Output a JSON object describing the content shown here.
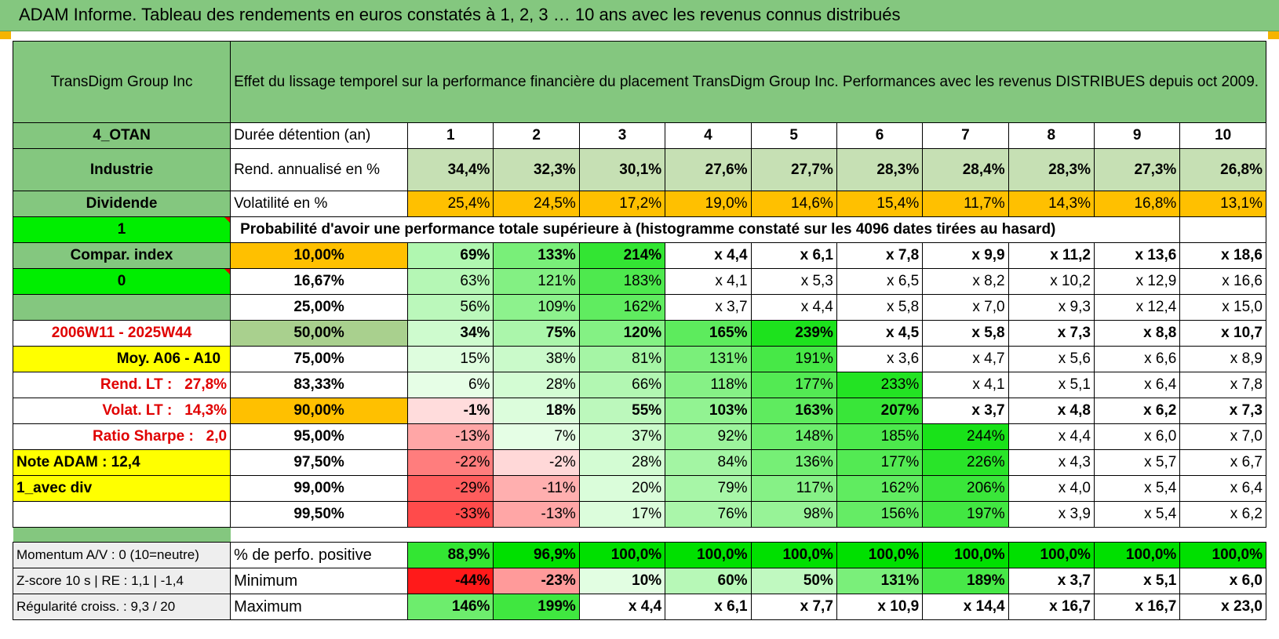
{
  "header": {
    "title": "ADAM Informe. Tableau des rendements en euros constatés à 1, 2, 3 … 10 ans avec les revenus connus distribués"
  },
  "company": "TransDigm Group Inc",
  "subtitle": "Effet du lissage temporel sur la performance financière du placement TransDigm Group Inc. Performances avec les revenus DISTRIBUES depuis oct 2009.",
  "left_labels": {
    "group": "4_OTAN",
    "sector": "Industrie",
    "dividend": "Dividende",
    "one": "1",
    "compar": "Compar. index",
    "zero": "0",
    "period": "2006W11 - 2025W44",
    "moy": "Moy. A06 - A10",
    "rend_lt_label": "Rend. LT :",
    "rend_lt_value": "27,8%",
    "volat_lt_label": "Volat. LT :",
    "volat_lt_value": "14,3%",
    "sharpe_label": "Ratio Sharpe :",
    "sharpe_value": "2,0",
    "note": "Note ADAM : 12,4",
    "avec_div": "1_avec div",
    "momentum": "Momentum A/V : 0 (10=neutre)",
    "zscore": "Z-score 10 s | RE : 1,1 | -1,4",
    "regularite": "Régularité croiss. : 9,3 / 20"
  },
  "row_labels": {
    "duree": "Durée détention (an)",
    "rend": "Rend. annualisé en %",
    "vol": "Volatilité en %",
    "proba": "Probabilité d'avoir une performance totale supérieure à (histogramme constaté sur les 4096 dates tirées au hasard)",
    "pos": "% de perfo. positive",
    "min": "Minimum",
    "max": "Maximum"
  },
  "years": [
    "1",
    "2",
    "3",
    "4",
    "5",
    "6",
    "7",
    "8",
    "9",
    "10"
  ],
  "rend": [
    "34,4%",
    "32,3%",
    "30,1%",
    "27,6%",
    "27,7%",
    "28,3%",
    "28,4%",
    "28,3%",
    "27,3%",
    "26,8%"
  ],
  "vol": [
    "25,4%",
    "24,5%",
    "17,2%",
    "19,0%",
    "14,6%",
    "15,4%",
    "11,7%",
    "14,3%",
    "16,8%",
    "13,1%"
  ],
  "proba_rows": [
    {
      "pct": "10,00%",
      "vals": [
        "69%",
        "133%",
        "214%",
        "x 4,4",
        "x 6,1",
        "x 7,8",
        "x 9,9",
        "x 11,2",
        "x 13,6",
        "x 18,6"
      ]
    },
    {
      "pct": "16,67%",
      "vals": [
        "63%",
        "121%",
        "183%",
        "x 4,1",
        "x 5,3",
        "x 6,5",
        "x 8,2",
        "x 10,2",
        "x 12,9",
        "x 16,6"
      ]
    },
    {
      "pct": "25,00%",
      "vals": [
        "56%",
        "109%",
        "162%",
        "x 3,7",
        "x 4,4",
        "x 5,8",
        "x 7,0",
        "x 9,3",
        "x 12,4",
        "x 15,0"
      ]
    },
    {
      "pct": "50,00%",
      "vals": [
        "34%",
        "75%",
        "120%",
        "165%",
        "239%",
        "x 4,5",
        "x 5,8",
        "x 7,3",
        "x 8,8",
        "x 10,7"
      ]
    },
    {
      "pct": "75,00%",
      "vals": [
        "15%",
        "38%",
        "81%",
        "131%",
        "191%",
        "x 3,6",
        "x 4,7",
        "x 5,6",
        "x 6,6",
        "x 8,9"
      ]
    },
    {
      "pct": "83,33%",
      "vals": [
        "6%",
        "28%",
        "66%",
        "118%",
        "177%",
        "233%",
        "x 4,1",
        "x 5,1",
        "x 6,4",
        "x 7,8"
      ]
    },
    {
      "pct": "90,00%",
      "vals": [
        "-1%",
        "18%",
        "55%",
        "103%",
        "163%",
        "207%",
        "x 3,7",
        "x 4,8",
        "x 6,2",
        "x 7,3"
      ]
    },
    {
      "pct": "95,00%",
      "vals": [
        "-13%",
        "7%",
        "37%",
        "92%",
        "148%",
        "185%",
        "244%",
        "x 4,4",
        "x 6,0",
        "x 7,0"
      ]
    },
    {
      "pct": "97,50%",
      "vals": [
        "-22%",
        "-2%",
        "28%",
        "84%",
        "136%",
        "177%",
        "226%",
        "x 4,3",
        "x 5,7",
        "x 6,7"
      ]
    },
    {
      "pct": "99,00%",
      "vals": [
        "-29%",
        "-11%",
        "20%",
        "79%",
        "117%",
        "162%",
        "206%",
        "x 4,0",
        "x 5,4",
        "x 6,4"
      ]
    },
    {
      "pct": "99,50%",
      "vals": [
        "-33%",
        "-13%",
        "17%",
        "76%",
        "98%",
        "156%",
        "197%",
        "x 3,9",
        "x 5,4",
        "x 6,2"
      ]
    }
  ],
  "pos": [
    "88,9%",
    "96,9%",
    "100,0%",
    "100,0%",
    "100,0%",
    "100,0%",
    "100,0%",
    "100,0%",
    "100,0%",
    "100,0%"
  ],
  "min": [
    "-44%",
    "-23%",
    "10%",
    "60%",
    "50%",
    "131%",
    "189%",
    "x 3,7",
    "x 5,1",
    "x 6,0"
  ],
  "max": [
    "146%",
    "199%",
    "x 4,4",
    "x 6,1",
    "x 7,7",
    "x 10,9",
    "x 14,4",
    "x 16,7",
    "x 16,7",
    "x 23,0"
  ]
}
